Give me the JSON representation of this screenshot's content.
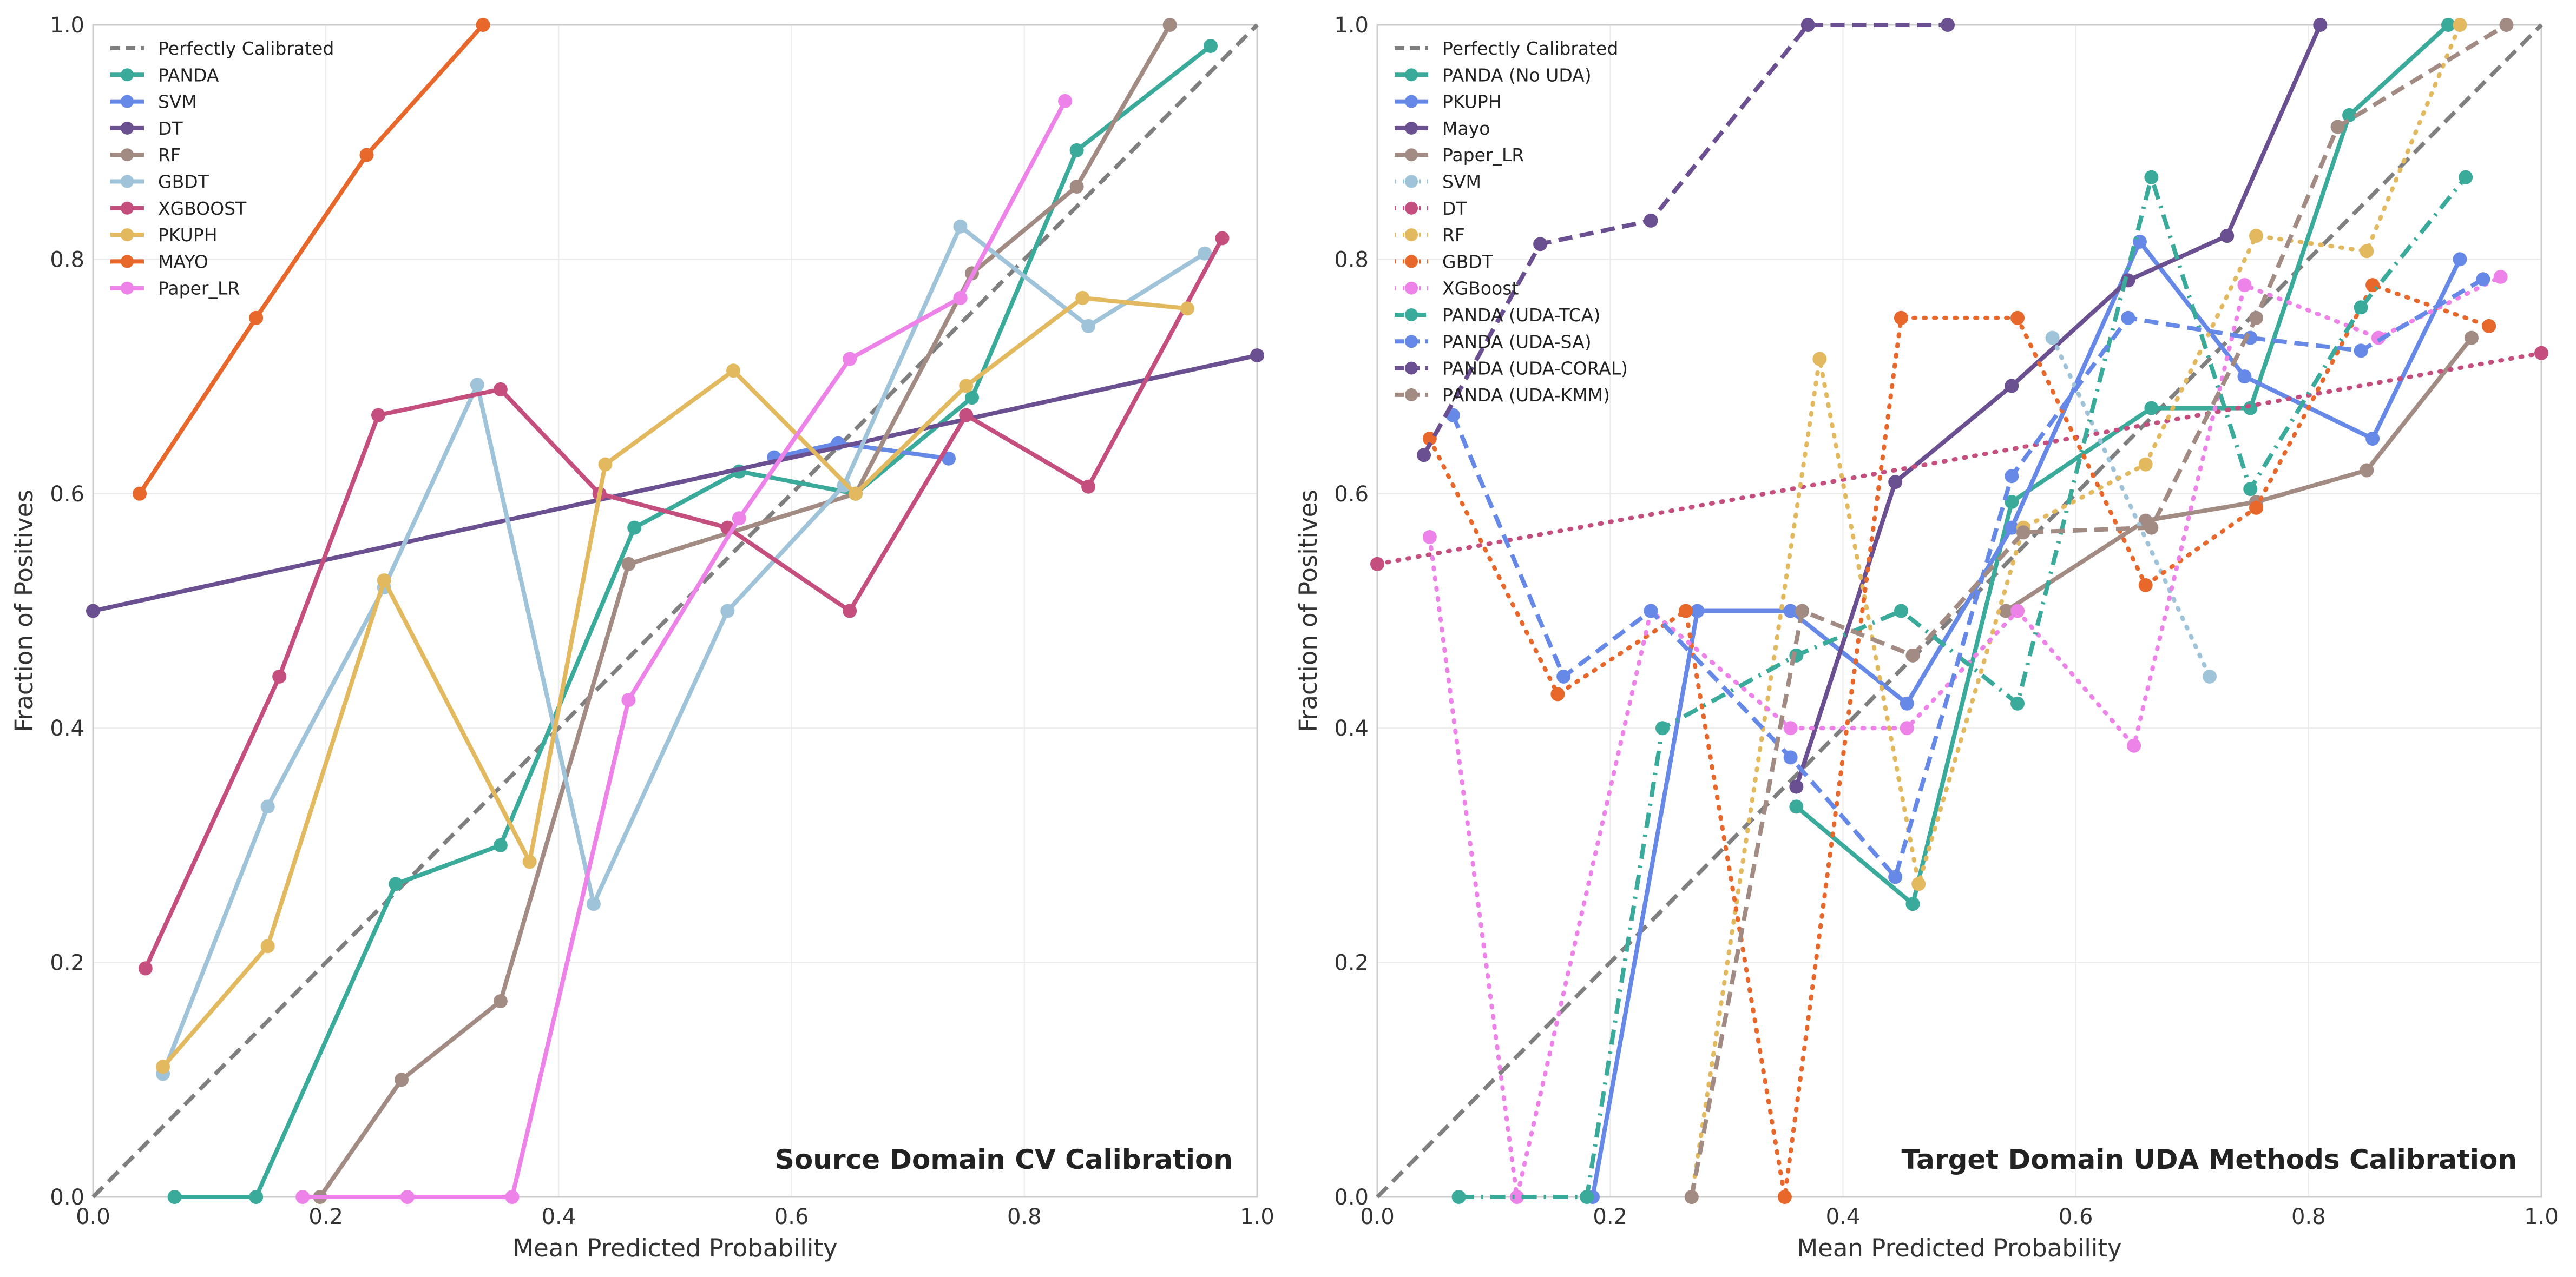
{
  "chart_data": [
    {
      "type": "line",
      "title": "Source Domain CV Calibration",
      "xlabel": "Mean Predicted Probability",
      "ylabel": "Fraction of Positives",
      "xlim": [
        0,
        1
      ],
      "ylim": [
        0,
        1
      ],
      "x_ticks": [
        "0.0",
        "0.2",
        "0.4",
        "0.6",
        "0.8",
        "1.0"
      ],
      "y_ticks": [
        "0.0",
        "0.2",
        "0.4",
        "0.6",
        "0.8",
        "1.0"
      ],
      "grid": true,
      "legend_position": "top-left",
      "series": [
        {
          "name": "Perfectly Calibrated",
          "color": "#7f7f7f",
          "dash": "dashed",
          "marker": false,
          "points": [
            [
              0,
              0
            ],
            [
              1,
              1
            ]
          ]
        },
        {
          "name": "PANDA",
          "color": "#3aaa9a",
          "dash": "solid",
          "marker": true,
          "points": [
            [
              0.07,
              0.0
            ],
            [
              0.14,
              0.0
            ],
            [
              0.26,
              0.267
            ],
            [
              0.35,
              0.3
            ],
            [
              0.465,
              0.571
            ],
            [
              0.555,
              0.619
            ],
            [
              0.655,
              0.6
            ],
            [
              0.755,
              0.682
            ],
            [
              0.845,
              0.893
            ],
            [
              0.96,
              0.982
            ]
          ]
        },
        {
          "name": "SVM",
          "color": "#6689e8",
          "dash": "solid",
          "marker": true,
          "points": [
            [
              0.585,
              0.631
            ],
            [
              0.64,
              0.643
            ],
            [
              0.735,
              0.63
            ]
          ]
        },
        {
          "name": "DT",
          "color": "#6a5090",
          "dash": "solid",
          "marker": true,
          "points": [
            [
              0.0,
              0.5
            ],
            [
              1.0,
              0.718
            ]
          ]
        },
        {
          "name": "RF",
          "color": "#a28b83",
          "dash": "solid",
          "marker": true,
          "points": [
            [
              0.195,
              0.0
            ],
            [
              0.265,
              0.1
            ],
            [
              0.35,
              0.167
            ],
            [
              0.46,
              0.54
            ],
            [
              0.655,
              0.6
            ],
            [
              0.755,
              0.788
            ],
            [
              0.845,
              0.862
            ],
            [
              0.925,
              1.0
            ]
          ]
        },
        {
          "name": "GBDT",
          "color": "#9fc3d8",
          "dash": "solid",
          "marker": true,
          "points": [
            [
              0.06,
              0.105
            ],
            [
              0.15,
              0.333
            ],
            [
              0.25,
              0.52
            ],
            [
              0.33,
              0.693
            ],
            [
              0.43,
              0.25
            ],
            [
              0.545,
              0.5
            ],
            [
              0.645,
              0.607
            ],
            [
              0.745,
              0.828
            ],
            [
              0.855,
              0.743
            ],
            [
              0.955,
              0.805
            ]
          ]
        },
        {
          "name": "XGBOOST",
          "color": "#c44e7e",
          "dash": "solid",
          "marker": true,
          "points": [
            [
              0.045,
              0.195
            ],
            [
              0.16,
              0.444
            ],
            [
              0.245,
              0.667
            ],
            [
              0.35,
              0.689
            ],
            [
              0.435,
              0.6
            ],
            [
              0.545,
              0.571
            ],
            [
              0.65,
              0.5
            ],
            [
              0.75,
              0.667
            ],
            [
              0.855,
              0.606
            ],
            [
              0.97,
              0.818
            ]
          ]
        },
        {
          "name": "PKUPH",
          "color": "#e2b95f",
          "dash": "solid",
          "marker": true,
          "points": [
            [
              0.06,
              0.111
            ],
            [
              0.15,
              0.214
            ],
            [
              0.25,
              0.526
            ],
            [
              0.375,
              0.286
            ],
            [
              0.44,
              0.625
            ],
            [
              0.55,
              0.705
            ],
            [
              0.655,
              0.6
            ],
            [
              0.75,
              0.692
            ],
            [
              0.85,
              0.767
            ],
            [
              0.94,
              0.758
            ]
          ]
        },
        {
          "name": "MAYO",
          "color": "#e8672a",
          "dash": "solid",
          "marker": true,
          "points": [
            [
              0.04,
              0.6
            ],
            [
              0.14,
              0.75
            ],
            [
              0.235,
              0.889
            ],
            [
              0.335,
              1.0
            ]
          ]
        },
        {
          "name": "Paper_LR",
          "color": "#ed82e8",
          "dash": "solid",
          "marker": true,
          "points": [
            [
              0.18,
              0.0
            ],
            [
              0.27,
              0.0
            ],
            [
              0.36,
              0.0
            ],
            [
              0.46,
              0.424
            ],
            [
              0.555,
              0.579
            ],
            [
              0.65,
              0.715
            ],
            [
              0.745,
              0.767
            ],
            [
              0.835,
              0.935
            ]
          ]
        }
      ]
    },
    {
      "type": "line",
      "title": "Target Domain UDA Methods Calibration",
      "xlabel": "Mean Predicted Probability",
      "ylabel": "Fraction of Positives",
      "xlim": [
        0,
        1
      ],
      "ylim": [
        0,
        1
      ],
      "x_ticks": [
        "0.0",
        "0.2",
        "0.4",
        "0.6",
        "0.8",
        "1.0"
      ],
      "y_ticks": [
        "0.0",
        "0.2",
        "0.4",
        "0.6",
        "0.8",
        "1.0"
      ],
      "grid": true,
      "legend_position": "top-left",
      "series": [
        {
          "name": "Perfectly Calibrated",
          "color": "#7f7f7f",
          "dash": "dashed",
          "marker": false,
          "points": [
            [
              0,
              0
            ],
            [
              1,
              1
            ]
          ]
        },
        {
          "name": "PANDA (No UDA)",
          "color": "#3aaa9a",
          "dash": "solid",
          "marker": true,
          "points": [
            [
              0.36,
              0.333
            ],
            [
              0.46,
              0.25
            ],
            [
              0.545,
              0.593
            ],
            [
              0.665,
              0.673
            ],
            [
              0.75,
              0.673
            ],
            [
              0.835,
              0.923
            ],
            [
              0.92,
              1.0
            ]
          ]
        },
        {
          "name": "PKUPH",
          "color": "#6689e8",
          "dash": "solid",
          "marker": true,
          "points": [
            [
              0.185,
              0.0
            ],
            [
              0.275,
              0.5
            ],
            [
              0.355,
              0.5
            ],
            [
              0.455,
              0.421
            ],
            [
              0.545,
              0.571
            ],
            [
              0.655,
              0.815
            ],
            [
              0.745,
              0.7
            ],
            [
              0.855,
              0.647
            ],
            [
              0.93,
              0.8
            ]
          ]
        },
        {
          "name": "Mayo",
          "color": "#6a5090",
          "dash": "solid",
          "marker": true,
          "points": [
            [
              0.36,
              0.35
            ],
            [
              0.445,
              0.61
            ],
            [
              0.545,
              0.692
            ],
            [
              0.645,
              0.782
            ],
            [
              0.73,
              0.82
            ],
            [
              0.81,
              1.0
            ]
          ]
        },
        {
          "name": "Paper_LR",
          "color": "#a28b83",
          "dash": "solid",
          "marker": true,
          "points": [
            [
              0.54,
              0.5
            ],
            [
              0.66,
              0.577
            ],
            [
              0.755,
              0.593
            ],
            [
              0.85,
              0.62
            ],
            [
              0.94,
              0.733
            ]
          ]
        },
        {
          "name": "SVM",
          "color": "#9fc3d8",
          "dash": "dotted",
          "marker": true,
          "points": [
            [
              0.58,
              0.733
            ],
            [
              0.715,
              0.444
            ]
          ]
        },
        {
          "name": "DT",
          "color": "#c44e7e",
          "dash": "dotted",
          "marker": true,
          "points": [
            [
              0.0,
              0.54
            ],
            [
              1.0,
              0.72
            ]
          ]
        },
        {
          "name": "RF",
          "color": "#e2b95f",
          "dash": "dotted",
          "marker": true,
          "points": [
            [
              0.27,
              0.0
            ],
            [
              0.38,
              0.715
            ],
            [
              0.465,
              0.267
            ],
            [
              0.555,
              0.571
            ],
            [
              0.66,
              0.625
            ],
            [
              0.755,
              0.82
            ],
            [
              0.85,
              0.807
            ],
            [
              0.93,
              1.0
            ]
          ]
        },
        {
          "name": "GBDT",
          "color": "#e8672a",
          "dash": "dotted",
          "marker": true,
          "points": [
            [
              0.045,
              0.647
            ],
            [
              0.155,
              0.429
            ],
            [
              0.265,
              0.5
            ],
            [
              0.35,
              0.0
            ],
            [
              0.45,
              0.75
            ],
            [
              0.55,
              0.75
            ],
            [
              0.66,
              0.522
            ],
            [
              0.755,
              0.588
            ],
            [
              0.855,
              0.778
            ],
            [
              0.955,
              0.743
            ]
          ]
        },
        {
          "name": "XGBoost",
          "color": "#ed82e8",
          "dash": "dotted",
          "marker": true,
          "points": [
            [
              0.045,
              0.563
            ],
            [
              0.12,
              0.0
            ],
            [
              0.235,
              0.5
            ],
            [
              0.355,
              0.4
            ],
            [
              0.455,
              0.4
            ],
            [
              0.55,
              0.5
            ],
            [
              0.65,
              0.385
            ],
            [
              0.745,
              0.778
            ],
            [
              0.86,
              0.733
            ],
            [
              0.965,
              0.785
            ]
          ]
        },
        {
          "name": "PANDA (UDA-TCA)",
          "color": "#3aaa9a",
          "dash": "dashdot",
          "marker": true,
          "points": [
            [
              0.07,
              0.0
            ],
            [
              0.18,
              0.0
            ],
            [
              0.245,
              0.4
            ],
            [
              0.36,
              0.462
            ],
            [
              0.45,
              0.5
            ],
            [
              0.55,
              0.421
            ],
            [
              0.665,
              0.87
            ],
            [
              0.75,
              0.604
            ],
            [
              0.845,
              0.759
            ],
            [
              0.935,
              0.87
            ]
          ]
        },
        {
          "name": "PANDA (UDA-SA)",
          "color": "#6689e8",
          "dash": "dashed",
          "marker": true,
          "points": [
            [
              0.065,
              0.667
            ],
            [
              0.16,
              0.444
            ],
            [
              0.235,
              0.5
            ],
            [
              0.355,
              0.375
            ],
            [
              0.445,
              0.273
            ],
            [
              0.545,
              0.615
            ],
            [
              0.645,
              0.75
            ],
            [
              0.75,
              0.733
            ],
            [
              0.845,
              0.722
            ],
            [
              0.95,
              0.783
            ]
          ]
        },
        {
          "name": "PANDA (UDA-CORAL)",
          "color": "#6a5090",
          "dash": "dashed",
          "marker": true,
          "points": [
            [
              0.04,
              0.633
            ],
            [
              0.14,
              0.813
            ],
            [
              0.235,
              0.833
            ],
            [
              0.37,
              1.0
            ],
            [
              0.49,
              1.0
            ]
          ]
        },
        {
          "name": "PANDA (UDA-KMM)",
          "color": "#a28b83",
          "dash": "dashed",
          "marker": true,
          "points": [
            [
              0.27,
              0.0
            ],
            [
              0.365,
              0.5
            ],
            [
              0.46,
              0.462
            ],
            [
              0.555,
              0.567
            ],
            [
              0.665,
              0.571
            ],
            [
              0.755,
              0.75
            ],
            [
              0.825,
              0.913
            ],
            [
              0.97,
              1.0
            ]
          ]
        }
      ]
    }
  ]
}
